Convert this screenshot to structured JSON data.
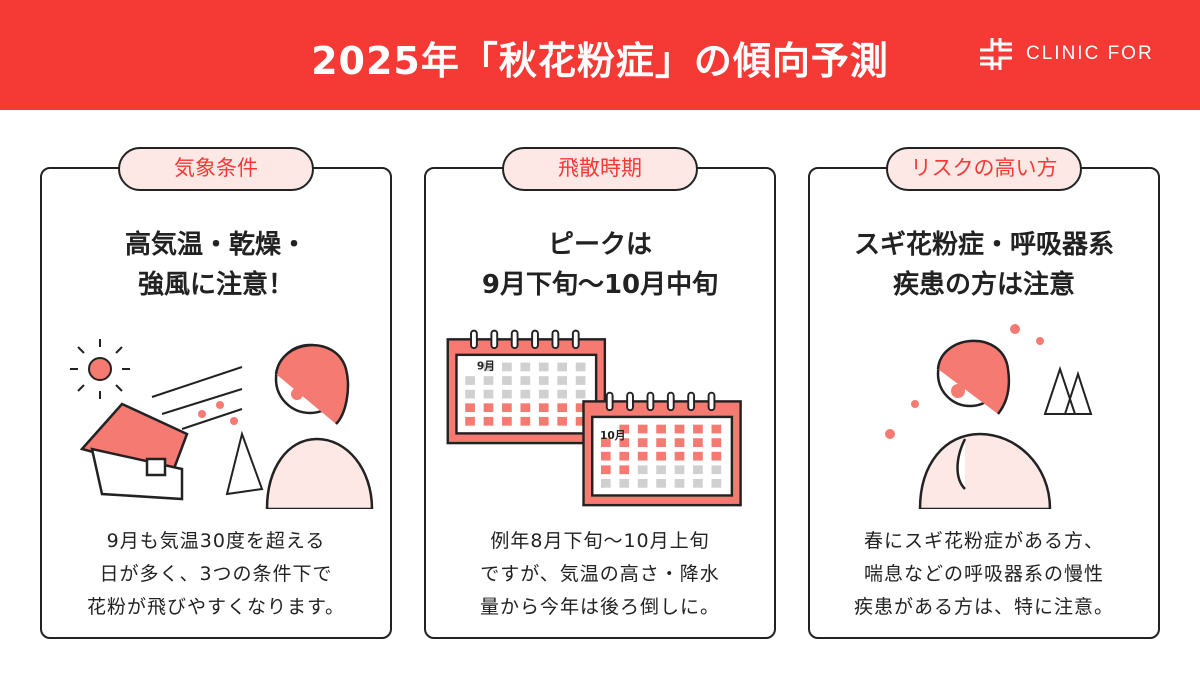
{
  "header": {
    "title": "2025年「秋花粉症」の傾向予測",
    "logo_text": "CLINIC FOR"
  },
  "colors": {
    "accent": "#f53a36",
    "pill_bg": "#fde8e6",
    "calendar_red": "#f47a72",
    "calendar_gray": "#d0d0d0"
  },
  "cards": [
    {
      "label": "気象条件",
      "heading": "高気温・乾燥・\n強風に注意！",
      "body": "9月も気温30度を超える\n日が多く、3つの条件下で\n花粉が飛びやすくなります。"
    },
    {
      "label": "飛散時期",
      "heading": "ピークは\n9月下旬〜10月中旬",
      "body": "例年8月下旬〜10月上旬\nですが、気温の高さ・降水\n量から今年は後ろ倒しに。",
      "calendars": [
        {
          "month": "9月"
        },
        {
          "month": "10月"
        }
      ]
    },
    {
      "label": "リスクの高い方",
      "heading": "スギ花粉症・呼吸器系\n疾患の方は注意",
      "body": "春にスギ花粉症がある方、\n喘息などの呼吸器系の慢性\n疾患がある方は、特に注意。"
    }
  ]
}
